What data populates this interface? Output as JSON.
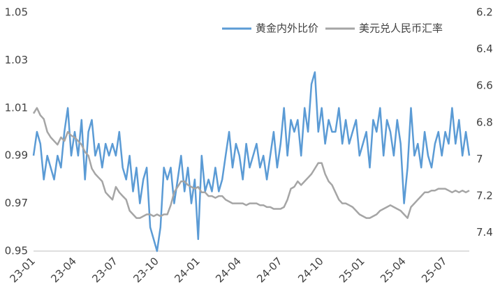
{
  "chart_data": {
    "type": "line",
    "categories": [
      "23-01",
      null,
      null,
      null,
      null,
      null,
      null,
      null,
      null,
      null,
      null,
      null,
      "23-04",
      null,
      null,
      null,
      null,
      null,
      null,
      null,
      null,
      null,
      null,
      null,
      "23-07",
      null,
      null,
      null,
      null,
      null,
      null,
      null,
      null,
      null,
      null,
      null,
      "23-10",
      null,
      null,
      null,
      null,
      null,
      null,
      null,
      null,
      null,
      null,
      null,
      "24-01",
      null,
      null,
      null,
      null,
      null,
      null,
      null,
      null,
      null,
      null,
      null,
      "24-04",
      null,
      null,
      null,
      null,
      null,
      null,
      null,
      null,
      null,
      null,
      null,
      "24-07",
      null,
      null,
      null,
      null,
      null,
      null,
      null,
      null,
      null,
      null,
      null,
      "24-10",
      null,
      null,
      null,
      null,
      null,
      null,
      null,
      null,
      null,
      null,
      null,
      "25-01",
      null,
      null,
      null,
      null,
      null,
      null,
      null,
      null,
      null,
      null,
      null,
      "25-04",
      null,
      null,
      null,
      null,
      null,
      null,
      null,
      null,
      null,
      null,
      null,
      "25-07",
      null,
      null,
      null,
      null,
      null,
      null,
      null
    ],
    "series": [
      {
        "name": "黄金内外比价",
        "color": "#5b9bd5",
        "values": [
          0.99,
          1.0,
          0.995,
          0.98,
          0.99,
          0.985,
          0.98,
          0.99,
          0.985,
          1.0,
          1.01,
          0.99,
          1.0,
          0.99,
          1.005,
          0.98,
          1.0,
          1.005,
          0.99,
          0.995,
          0.985,
          0.995,
          0.99,
          0.995,
          0.99,
          1.0,
          0.985,
          0.98,
          0.99,
          0.975,
          0.985,
          0.97,
          0.98,
          0.985,
          0.96,
          0.955,
          0.95,
          0.96,
          0.985,
          0.98,
          0.985,
          0.97,
          0.98,
          0.99,
          0.975,
          0.985,
          0.97,
          0.98,
          0.955,
          0.99,
          0.975,
          0.98,
          0.975,
          0.985,
          0.975,
          0.98,
          0.99,
          1.0,
          0.985,
          0.995,
          0.99,
          0.98,
          0.995,
          0.985,
          0.99,
          0.995,
          0.985,
          0.99,
          0.98,
          0.99,
          1.0,
          0.985,
          0.995,
          1.01,
          0.99,
          1.005,
          1.0,
          1.005,
          0.99,
          1.01,
          1.0,
          1.02,
          1.025,
          1.0,
          1.01,
          0.995,
          1.005,
          1.0,
          1.0,
          1.01,
          0.995,
          1.005,
          0.995,
          1.0,
          1.005,
          0.99,
          0.995,
          1.0,
          0.985,
          1.005,
          1.0,
          1.01,
          0.99,
          1.005,
          1.0,
          0.99,
          1.005,
          0.995,
          0.97,
          0.985,
          1.01,
          0.99,
          0.995,
          0.985,
          1.0,
          0.99,
          0.985,
          0.995,
          1.0,
          0.99,
          1.0,
          0.995,
          1.01,
          0.995,
          1.005,
          0.99,
          1.0,
          0.99
        ]
      },
      {
        "name": "美元兑人民币汇率",
        "color": "#a5a5a5",
        "axis": "y2",
        "values": [
          6.75,
          6.72,
          6.76,
          6.78,
          6.85,
          6.88,
          6.9,
          6.92,
          6.88,
          6.9,
          6.85,
          6.87,
          6.88,
          6.9,
          6.92,
          6.96,
          6.98,
          7.05,
          7.08,
          7.1,
          7.12,
          7.18,
          7.2,
          7.22,
          7.15,
          7.18,
          7.2,
          7.22,
          7.28,
          7.3,
          7.32,
          7.32,
          7.31,
          7.3,
          7.3,
          7.31,
          7.3,
          7.31,
          7.3,
          7.3,
          7.25,
          7.18,
          7.15,
          7.12,
          7.12,
          7.14,
          7.15,
          7.16,
          7.15,
          7.18,
          7.18,
          7.2,
          7.2,
          7.21,
          7.2,
          7.2,
          7.22,
          7.23,
          7.24,
          7.24,
          7.24,
          7.24,
          7.25,
          7.24,
          7.24,
          7.24,
          7.25,
          7.25,
          7.26,
          7.26,
          7.27,
          7.27,
          7.27,
          7.26,
          7.22,
          7.16,
          7.15,
          7.12,
          7.14,
          7.12,
          7.1,
          7.08,
          7.05,
          7.02,
          7.02,
          7.08,
          7.12,
          7.14,
          7.18,
          7.22,
          7.24,
          7.24,
          7.25,
          7.26,
          7.28,
          7.3,
          7.31,
          7.32,
          7.32,
          7.31,
          7.3,
          7.28,
          7.27,
          7.26,
          7.25,
          7.26,
          7.27,
          7.28,
          7.3,
          7.32,
          7.26,
          7.24,
          7.22,
          7.2,
          7.18,
          7.18,
          7.17,
          7.17,
          7.16,
          7.16,
          7.16,
          7.17,
          7.18,
          7.17,
          7.18,
          7.17,
          7.18,
          7.17
        ]
      }
    ],
    "ylim": [
      0.95,
      1.05
    ],
    "yticks": [
      0.95,
      0.97,
      0.99,
      1.01,
      1.03,
      1.05
    ],
    "y2lim": [
      6.2,
      7.5
    ],
    "y2ticks": [
      6.2,
      6.4,
      6.6,
      6.8,
      7,
      7.2,
      7.4
    ],
    "y2_inverted": true,
    "legend": "top-right",
    "grid": false
  }
}
